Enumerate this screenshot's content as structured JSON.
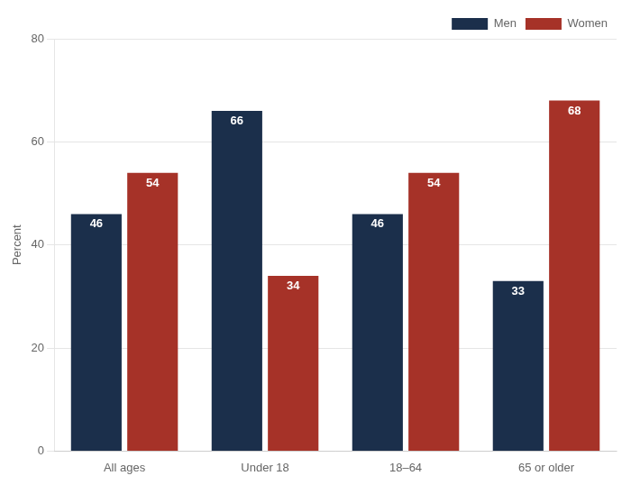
{
  "chart_data": {
    "type": "bar",
    "categories": [
      "All ages",
      "Under 18",
      "18–64",
      "65 or older"
    ],
    "series": [
      {
        "name": "Men",
        "color": "#1b2f4b",
        "values": [
          46,
          66,
          46,
          33
        ]
      },
      {
        "name": "Women",
        "color": "#a63228",
        "values": [
          54,
          34,
          54,
          68
        ]
      }
    ],
    "ylabel": "Percent",
    "ylim": [
      0,
      80
    ],
    "yticks": [
      0,
      20,
      40,
      60,
      80
    ],
    "grid": true,
    "legend": "upper right",
    "data_labels": true
  }
}
